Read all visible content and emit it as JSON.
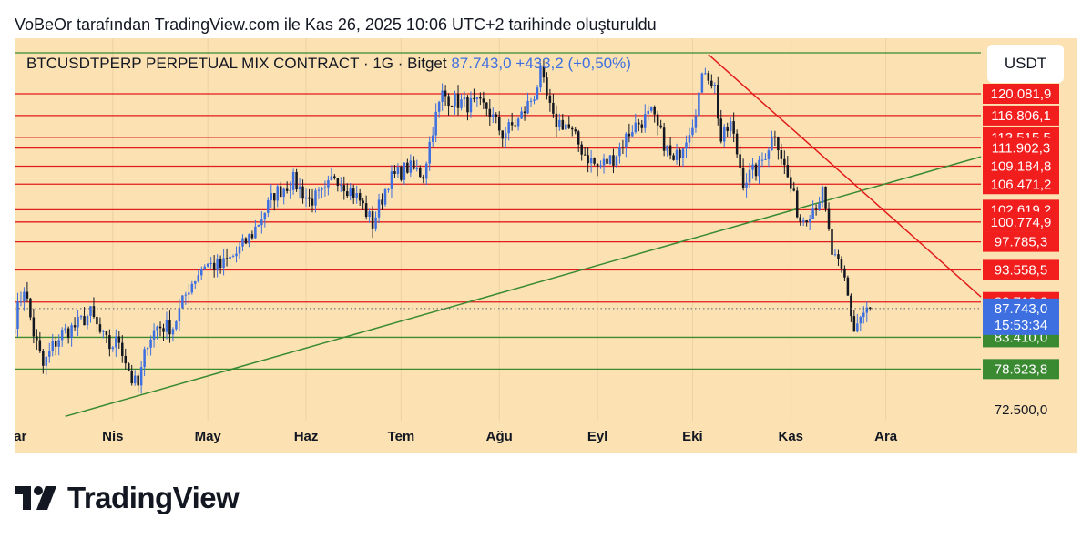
{
  "caption": "VoBeOr tarafından TradingView.com ile Kas 26, 2025 10:06 UTC+2 tarihinde oluşturuldu",
  "header": {
    "symbol": "BTCUSDTPERP PERPETUAL MIX CONTRACT · 1G · Bitget",
    "price": "87.743,0",
    "change": "+433,2 (+0,50%)"
  },
  "currency_button": "USDT",
  "brand": "TradingView",
  "colors": {
    "background": "#fce2b2",
    "resistance_line": "#e21b1b",
    "support_line": "#3a8a32",
    "up_candle": "#3d6fe0",
    "down_candle": "#131722",
    "current_price": "#3d6fe0"
  },
  "chart_data": {
    "type": "candlestick",
    "timeframe": "1D",
    "x_range": [
      "2025-03-01",
      "2025-12-31"
    ],
    "ylim": [
      70000,
      125000
    ],
    "x_ticks": [
      {
        "label": "Mar",
        "date": "2025-03-01"
      },
      {
        "label": "Nis",
        "date": "2025-04-01"
      },
      {
        "label": "May",
        "date": "2025-05-01"
      },
      {
        "label": "Haz",
        "date": "2025-06-01"
      },
      {
        "label": "Tem",
        "date": "2025-07-01"
      },
      {
        "label": "Ağu",
        "date": "2025-08-01"
      },
      {
        "label": "Eyl",
        "date": "2025-09-01"
      },
      {
        "label": "Eki",
        "date": "2025-10-01"
      },
      {
        "label": "Kas",
        "date": "2025-11-01"
      },
      {
        "label": "Ara",
        "date": "2025-12-01"
      }
    ],
    "axis_labels": [
      {
        "label": "72.500,0",
        "value": 72500
      }
    ],
    "horizontal_levels": [
      {
        "value": 120081.9,
        "label": "120.081,9",
        "kind": "resistance"
      },
      {
        "value": 116806.1,
        "label": "116.806,1",
        "kind": "resistance"
      },
      {
        "value": 113515.5,
        "label": "113.515,5",
        "kind": "resistance"
      },
      {
        "value": 111902.3,
        "label": "111.902,3",
        "kind": "resistance"
      },
      {
        "value": 109184.8,
        "label": "109.184,8",
        "kind": "resistance"
      },
      {
        "value": 106471.2,
        "label": "106.471,2",
        "kind": "resistance"
      },
      {
        "value": 102619.2,
        "label": "102.619,2",
        "kind": "resistance"
      },
      {
        "value": 100774.9,
        "label": "100.774,9",
        "kind": "resistance"
      },
      {
        "value": 97785.3,
        "label": "97.785,3",
        "kind": "resistance"
      },
      {
        "value": 93558.5,
        "label": "93.558,5",
        "kind": "resistance"
      },
      {
        "value": 88719.2,
        "label": "88.719,2",
        "kind": "resistance"
      },
      {
        "value": 83410.0,
        "label": "83.410,0",
        "kind": "support"
      },
      {
        "value": 78623.8,
        "label": "78.623,8",
        "kind": "support"
      }
    ],
    "current_price": {
      "value": 87743.0,
      "label": "87.743,0",
      "countdown": "15:53:34"
    },
    "trendlines": [
      {
        "kind": "support",
        "points": [
          [
            "2025-03-17",
            71500
          ],
          [
            "2025-12-31",
            110600
          ]
        ]
      },
      {
        "kind": "resistance",
        "points": [
          [
            "2025-10-06",
            126000
          ],
          [
            "2025-12-31",
            89500
          ]
        ]
      }
    ],
    "path": [
      [
        "2025-03-01",
        86000
      ],
      [
        "2025-03-04",
        91000
      ],
      [
        "2025-03-07",
        84000
      ],
      [
        "2025-03-10",
        79000
      ],
      [
        "2025-03-13",
        82000
      ],
      [
        "2025-03-16",
        84000
      ],
      [
        "2025-03-20",
        85000
      ],
      [
        "2025-03-25",
        87000
      ],
      [
        "2025-03-28",
        84000
      ],
      [
        "2025-03-31",
        82000
      ],
      [
        "2025-04-03",
        83000
      ],
      [
        "2025-04-07",
        77000
      ],
      [
        "2025-04-09",
        76000
      ],
      [
        "2025-04-12",
        83000
      ],
      [
        "2025-04-15",
        85000
      ],
      [
        "2025-04-20",
        85000
      ],
      [
        "2025-04-25",
        91000
      ],
      [
        "2025-04-30",
        94500
      ],
      [
        "2025-05-05",
        94000
      ],
      [
        "2025-05-10",
        96000
      ],
      [
        "2025-05-15",
        99000
      ],
      [
        "2025-05-22",
        105000
      ],
      [
        "2025-05-28",
        107000
      ],
      [
        "2025-06-02",
        104000
      ],
      [
        "2025-06-07",
        105000
      ],
      [
        "2025-06-10",
        108000
      ],
      [
        "2025-06-15",
        105500
      ],
      [
        "2025-06-18",
        104000
      ],
      [
        "2025-06-22",
        100500
      ],
      [
        "2025-06-27",
        107000
      ],
      [
        "2025-07-03",
        109000
      ],
      [
        "2025-07-08",
        108000
      ],
      [
        "2025-07-11",
        115000
      ],
      [
        "2025-07-14",
        120000
      ],
      [
        "2025-07-18",
        119000
      ],
      [
        "2025-07-22",
        118500
      ],
      [
        "2025-07-28",
        118000
      ],
      [
        "2025-08-02",
        114000
      ],
      [
        "2025-08-07",
        116000
      ],
      [
        "2025-08-12",
        120000
      ],
      [
        "2025-08-14",
        123000
      ],
      [
        "2025-08-18",
        116000
      ],
      [
        "2025-08-22",
        115500
      ],
      [
        "2025-08-28",
        111000
      ],
      [
        "2025-09-01",
        109000
      ],
      [
        "2025-09-06",
        110500
      ],
      [
        "2025-09-12",
        115000
      ],
      [
        "2025-09-18",
        117000
      ],
      [
        "2025-09-25",
        109500
      ],
      [
        "2025-10-01",
        116000
      ],
      [
        "2025-10-05",
        124000
      ],
      [
        "2025-10-08",
        121000
      ],
      [
        "2025-10-10",
        113000
      ],
      [
        "2025-10-13",
        115500
      ],
      [
        "2025-10-17",
        107000
      ],
      [
        "2025-10-22",
        109000
      ],
      [
        "2025-10-27",
        114500
      ],
      [
        "2025-10-30",
        109000
      ],
      [
        "2025-11-04",
        101000
      ],
      [
        "2025-11-08",
        103000
      ],
      [
        "2025-11-11",
        105000
      ],
      [
        "2025-11-14",
        96000
      ],
      [
        "2025-11-18",
        92000
      ],
      [
        "2025-11-21",
        84500
      ],
      [
        "2025-11-23",
        86500
      ],
      [
        "2025-11-26",
        87743
      ]
    ]
  }
}
